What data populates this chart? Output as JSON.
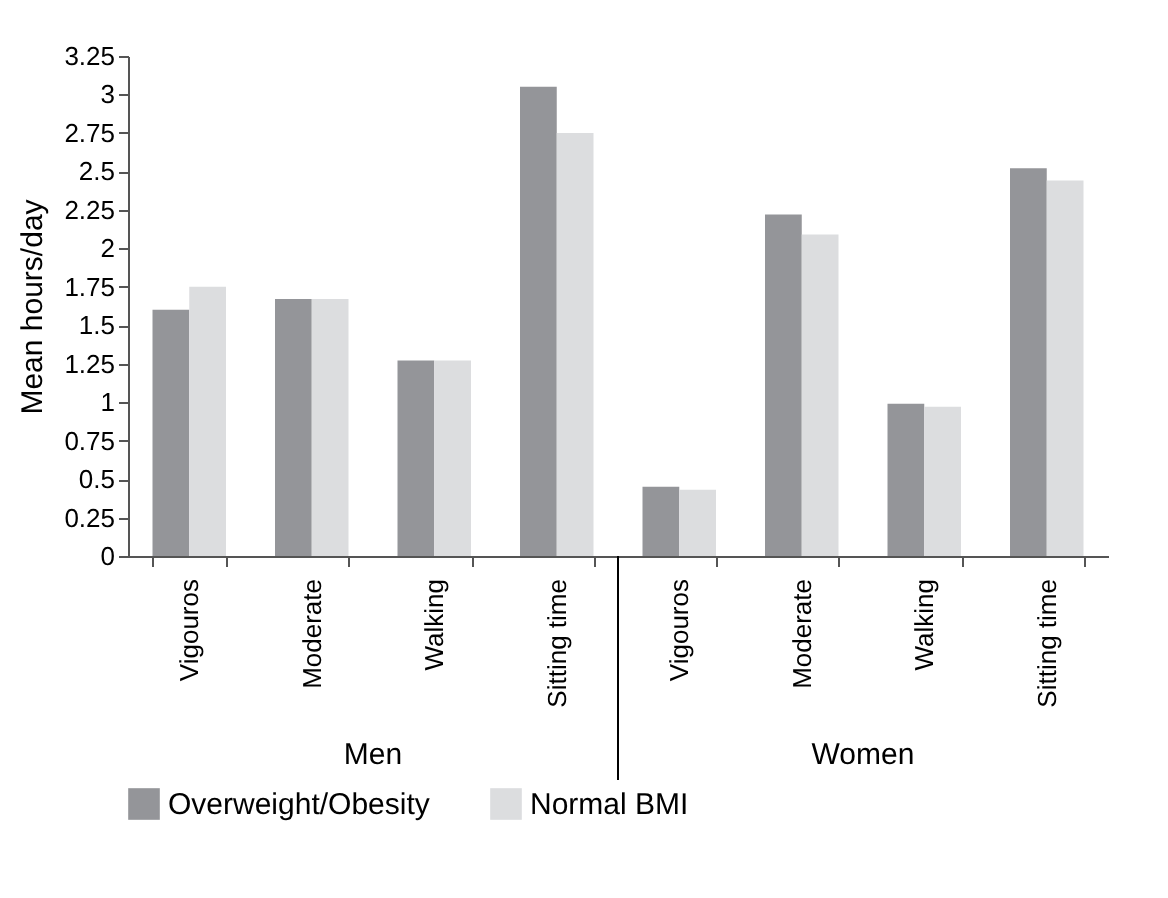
{
  "chart_data": {
    "type": "bar",
    "ylabel": "Mean hours/day",
    "categories": [
      "Vigouros",
      "Moderate",
      "Walking",
      "Sitting time",
      "Vigouros",
      "Moderate",
      "Walking",
      "Sitting time"
    ],
    "series": [
      {
        "name": "Overweight/Obesity",
        "color": "#949599",
        "values": [
          1.6,
          1.67,
          1.27,
          3.05,
          0.45,
          2.22,
          0.99,
          2.52
        ]
      },
      {
        "name": "Normal BMI",
        "color": "#dcdddf",
        "values": [
          1.75,
          1.67,
          1.27,
          2.75,
          0.43,
          2.09,
          0.97,
          2.44
        ]
      }
    ],
    "annotations": [
      "Men",
      "Women"
    ],
    "ylim": [
      0,
      3.25
    ],
    "yticks": [
      0,
      0.25,
      0.5,
      0.75,
      1,
      1.25,
      1.5,
      1.75,
      2,
      2.25,
      2.5,
      2.75,
      3,
      3.25
    ],
    "grid": false,
    "legend": "bottom"
  }
}
